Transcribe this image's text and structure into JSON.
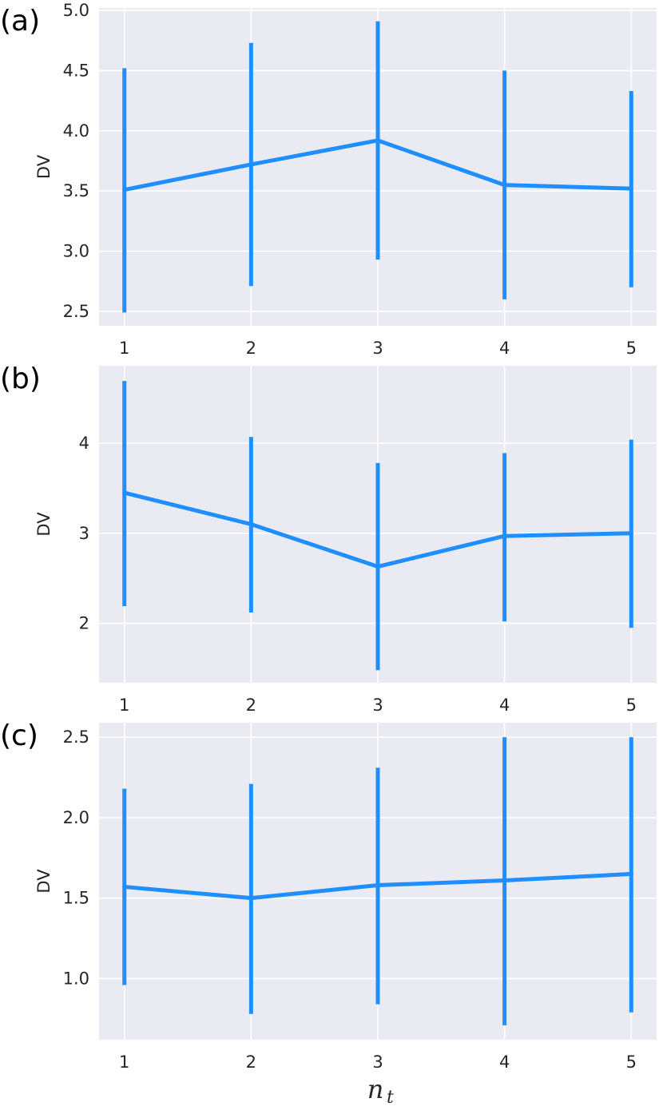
{
  "chart_data": [
    {
      "type": "line",
      "panel_label": "(a)",
      "ylabel": "DV",
      "x": [
        1,
        2,
        3,
        4,
        5
      ],
      "x_ticks": [
        "1",
        "2",
        "3",
        "4",
        "5"
      ],
      "y_ticks": [
        "2.5",
        "3.0",
        "3.5",
        "4.0",
        "4.5",
        "5.0"
      ],
      "ylim": [
        2.38,
        5.02
      ],
      "series": [
        {
          "values": [
            3.51,
            3.72,
            3.92,
            3.55,
            3.52
          ],
          "err_low": [
            2.49,
            2.71,
            2.93,
            2.6,
            2.7
          ],
          "err_high": [
            4.52,
            4.73,
            4.91,
            4.5,
            4.33
          ]
        }
      ],
      "grid": true
    },
    {
      "type": "line",
      "panel_label": "(b)",
      "ylabel": "DV",
      "x": [
        1,
        2,
        3,
        4,
        5
      ],
      "x_ticks": [
        "1",
        "2",
        "3",
        "4",
        "5"
      ],
      "y_ticks": [
        "2",
        "3",
        "4"
      ],
      "ylim": [
        1.34,
        4.86
      ],
      "series": [
        {
          "values": [
            3.45,
            3.1,
            2.63,
            2.97,
            3.0
          ],
          "err_low": [
            2.19,
            2.12,
            1.48,
            2.02,
            1.95
          ],
          "err_high": [
            4.69,
            4.07,
            3.78,
            3.89,
            4.04
          ]
        }
      ],
      "grid": true
    },
    {
      "type": "line",
      "panel_label": "(c)",
      "ylabel": "DV",
      "xlabel_main": "n",
      "xlabel_sub": "t",
      "x": [
        1,
        2,
        3,
        4,
        5
      ],
      "x_ticks": [
        "1",
        "2",
        "3",
        "4",
        "5"
      ],
      "y_ticks": [
        "1.0",
        "1.5",
        "2.0",
        "2.5"
      ],
      "ylim": [
        0.62,
        2.59
      ],
      "series": [
        {
          "values": [
            1.57,
            1.5,
            1.58,
            1.61,
            1.65
          ],
          "err_low": [
            0.96,
            0.78,
            0.84,
            0.71,
            0.79
          ],
          "err_high": [
            2.18,
            2.21,
            2.31,
            2.5,
            2.5
          ]
        }
      ],
      "grid": true
    }
  ],
  "style": {
    "line_color": "#1f8fff",
    "plot_bg": "#eaeaf2",
    "grid_color": "#ffffff"
  }
}
